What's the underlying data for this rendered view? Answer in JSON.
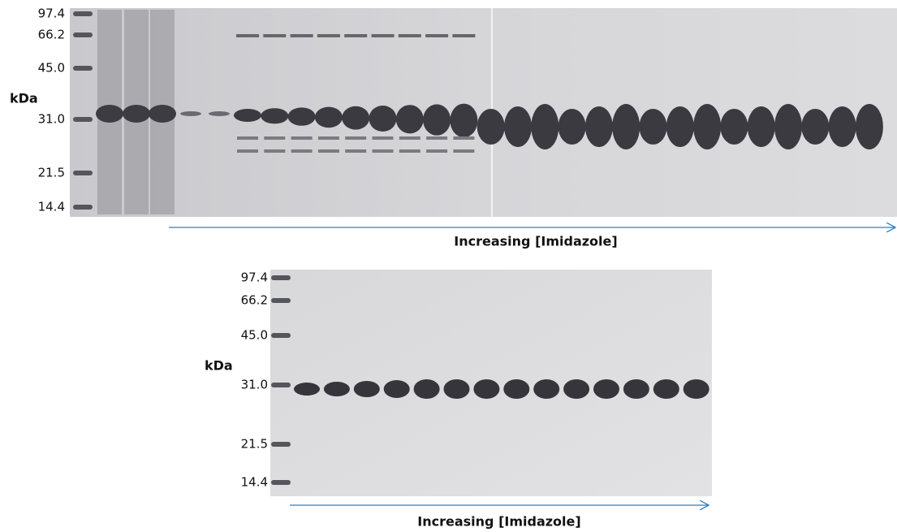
{
  "gels": [
    {
      "markers": [
        "97.4",
        "66.2",
        "45.0",
        "31.0",
        "21.5",
        "14.4"
      ],
      "unit_label": "kDa",
      "arrow_label": "Increasing [Imidazole]"
    },
    {
      "markers": [
        "97.4",
        "66.2",
        "45.0",
        "31.0",
        "21.5",
        "14.4"
      ],
      "unit_label": "kDa",
      "arrow_label": "Increasing [Imidazole]"
    }
  ]
}
